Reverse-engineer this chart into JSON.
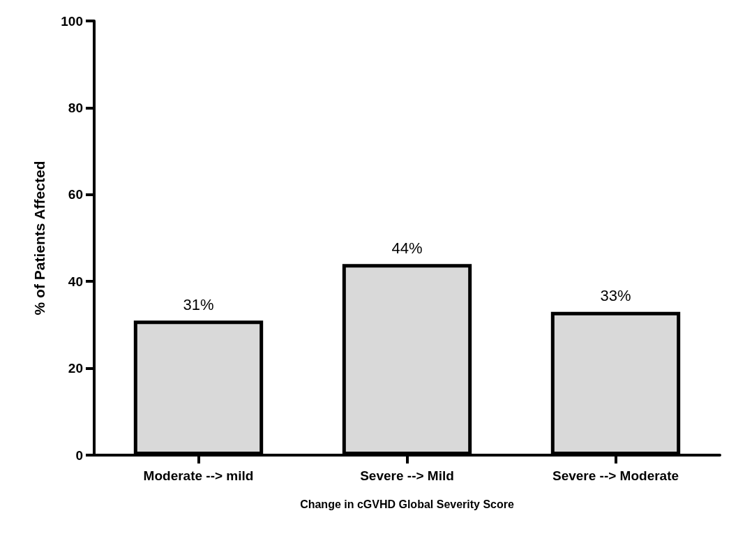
{
  "chart_data": {
    "type": "bar",
    "xlabel": "Change in cGVHD Global Severity Score",
    "ylabel": "% of Patients Affected",
    "categories": [
      "Moderate --> mild",
      "Severe --> Mild",
      "Severe --> Moderate"
    ],
    "values": [
      31,
      44,
      33
    ],
    "value_labels": [
      "31%",
      "44%",
      "33%"
    ],
    "color": "#d9d9d9",
    "ylim": [
      0,
      100
    ],
    "yticks": [
      0,
      20,
      40,
      60,
      80,
      100
    ],
    "grid": false
  }
}
